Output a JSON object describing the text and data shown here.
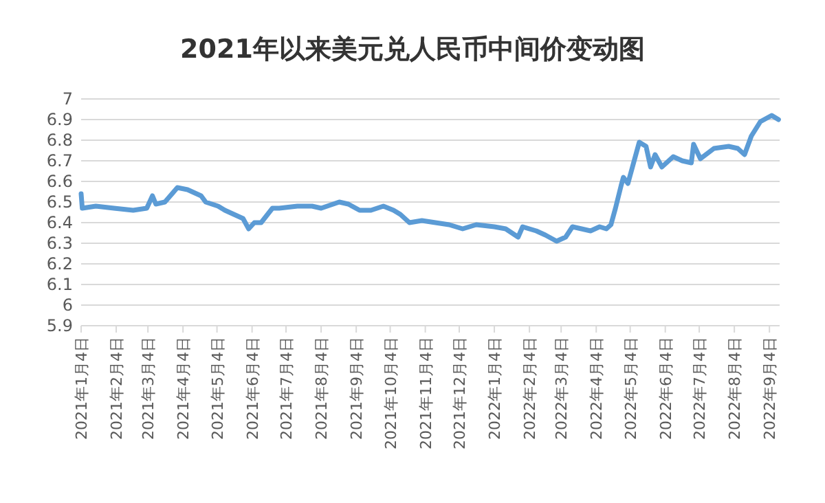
{
  "chart_data": {
    "type": "line",
    "title": "2021年以来美元兑人民币中间价变动图",
    "x": [
      "2021-01-04",
      "2021-01-05",
      "2021-01-17",
      "2021-02-02",
      "2021-02-19",
      "2021-03-03",
      "2021-03-08",
      "2021-03-11",
      "2021-03-19",
      "2021-03-30",
      "2021-04-08",
      "2021-04-20",
      "2021-04-24",
      "2021-05-05",
      "2021-05-11",
      "2021-05-19",
      "2021-05-27",
      "2021-06-01",
      "2021-06-06",
      "2021-06-12",
      "2021-06-22",
      "2021-06-28",
      "2021-07-14",
      "2021-07-18",
      "2021-07-27",
      "2021-08-04",
      "2021-08-20",
      "2021-08-28",
      "2021-09-07",
      "2021-09-17",
      "2021-09-28",
      "2021-10-07",
      "2021-10-13",
      "2021-10-21",
      "2021-11-01",
      "2021-11-13",
      "2021-11-25",
      "2021-12-07",
      "2021-12-19",
      "2022-01-04",
      "2022-01-14",
      "2022-01-25",
      "2022-01-29",
      "2022-02-10",
      "2022-02-18",
      "2022-02-28",
      "2022-03-08",
      "2022-03-14",
      "2022-03-22",
      "2022-03-30",
      "2022-04-07",
      "2022-04-13",
      "2022-04-17",
      "2022-04-21",
      "2022-04-26",
      "2022-04-28",
      "2022-05-02",
      "2022-05-06",
      "2022-05-12",
      "2022-05-18",
      "2022-05-22",
      "2022-05-26",
      "2022-06-01",
      "2022-06-11",
      "2022-06-19",
      "2022-06-27",
      "2022-06-29",
      "2022-07-05",
      "2022-07-17",
      "2022-07-30",
      "2022-08-07",
      "2022-08-13",
      "2022-08-19",
      "2022-08-27",
      "2022-09-06",
      "2022-09-12"
    ],
    "series": [
      {
        "color": "#5b9bd5",
        "values": [
          6.54,
          6.47,
          6.48,
          6.47,
          6.46,
          6.47,
          6.53,
          6.49,
          6.5,
          6.57,
          6.56,
          6.53,
          6.5,
          6.48,
          6.46,
          6.44,
          6.42,
          6.37,
          6.4,
          6.4,
          6.47,
          6.47,
          6.48,
          6.48,
          6.48,
          6.47,
          6.5,
          6.49,
          6.46,
          6.46,
          6.48,
          6.46,
          6.44,
          6.4,
          6.41,
          6.4,
          6.39,
          6.37,
          6.39,
          6.38,
          6.37,
          6.33,
          6.38,
          6.36,
          6.34,
          6.31,
          6.33,
          6.38,
          6.37,
          6.36,
          6.38,
          6.37,
          6.39,
          6.47,
          6.58,
          6.62,
          6.59,
          6.67,
          6.79,
          6.77,
          6.67,
          6.73,
          6.67,
          6.72,
          6.7,
          6.69,
          6.78,
          6.71,
          6.76,
          6.77,
          6.76,
          6.73,
          6.82,
          6.89,
          6.92,
          6.9
        ]
      }
    ],
    "xlim": [
      "2021-01-04",
      "2022-09-13"
    ],
    "xticks": [
      {
        "value": "2021-01-04",
        "label": "2021年1月4日"
      },
      {
        "value": "2021-02-04",
        "label": "2021年2月4日"
      },
      {
        "value": "2021-03-04",
        "label": "2021年3月4日"
      },
      {
        "value": "2021-04-04",
        "label": "2021年4月4日"
      },
      {
        "value": "2021-05-04",
        "label": "2021年5月4日"
      },
      {
        "value": "2021-06-04",
        "label": "2021年6月4日"
      },
      {
        "value": "2021-07-04",
        "label": "2021年7月4日"
      },
      {
        "value": "2021-08-04",
        "label": "2021年8月4日"
      },
      {
        "value": "2021-09-04",
        "label": "2021年9月4日"
      },
      {
        "value": "2021-10-04",
        "label": "2021年10月4日"
      },
      {
        "value": "2021-11-04",
        "label": "2021年11月4日"
      },
      {
        "value": "2021-12-04",
        "label": "2021年12月4日"
      },
      {
        "value": "2022-01-04",
        "label": "2022年1月4日"
      },
      {
        "value": "2022-02-04",
        "label": "2022年2月4日"
      },
      {
        "value": "2022-03-04",
        "label": "2022年3月4日"
      },
      {
        "value": "2022-04-04",
        "label": "2022年4月4日"
      },
      {
        "value": "2022-05-04",
        "label": "2022年5月4日"
      },
      {
        "value": "2022-06-04",
        "label": "2022年6月4日"
      },
      {
        "value": "2022-07-04",
        "label": "2022年7月4日"
      },
      {
        "value": "2022-08-04",
        "label": "2022年8月4日"
      },
      {
        "value": "2022-09-04",
        "label": "2022年9月4日"
      }
    ],
    "ylim": [
      5.9,
      7
    ],
    "yticks": [
      5.9,
      6,
      6.1,
      6.2,
      6.3,
      6.4,
      6.5,
      6.6,
      6.7,
      6.8,
      6.9,
      7
    ],
    "grid": "y",
    "line_style": "solid"
  }
}
